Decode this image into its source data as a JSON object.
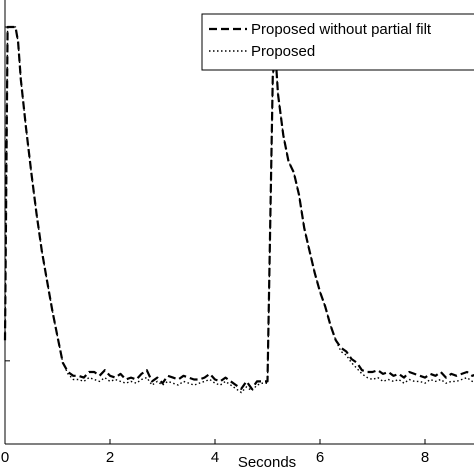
{
  "chart_data": {
    "type": "line",
    "title": "",
    "xlabel": "Seconds",
    "ylabel": "",
    "xlim": [
      0,
      9.1
    ],
    "ylim": [
      0,
      1
    ],
    "x_ticks": [
      "0",
      "2",
      "4",
      "6",
      "8"
    ],
    "x_tick_values": [
      0,
      2,
      4,
      6,
      8
    ],
    "y_tick_values": [
      0.105,
      1.0
    ],
    "grid": false,
    "legend_position": "top-right",
    "series": [
      {
        "name": "Proposed without partial filt",
        "style": "dashed",
        "color": "#000000",
        "x": [
          0,
          0.05,
          0.1,
          0.2,
          0.25,
          0.3,
          0.4,
          0.5,
          0.6,
          0.7,
          0.8,
          0.9,
          1.0,
          1.1,
          1.2,
          1.3,
          1.4,
          1.5,
          1.6,
          1.7,
          1.8,
          1.9,
          2.0,
          2.1,
          2.2,
          2.3,
          2.4,
          2.5,
          2.6,
          2.7,
          2.8,
          2.9,
          3.0,
          3.1,
          3.2,
          3.3,
          3.4,
          3.5,
          3.6,
          3.7,
          3.8,
          3.9,
          4.0,
          4.1,
          4.2,
          4.3,
          4.4,
          4.5,
          4.6,
          4.7,
          4.8,
          4.9,
          5.0,
          5.1,
          5.15,
          5.2,
          5.3,
          5.4,
          5.5,
          5.6,
          5.7,
          5.8,
          5.9,
          6.0,
          6.1,
          6.2,
          6.3,
          6.4,
          6.5,
          6.6,
          6.7,
          6.8,
          6.9,
          7.0,
          7.1,
          7.2,
          7.3,
          7.4,
          7.5,
          7.6,
          7.7,
          7.8,
          7.9,
          8.0,
          8.1,
          8.2,
          8.3,
          8.4,
          8.5,
          8.6,
          8.7,
          8.8,
          8.9,
          9.0
        ],
        "y": [
          0.16,
          1.0,
          1.0,
          1.0,
          0.96,
          0.86,
          0.73,
          0.61,
          0.5,
          0.4,
          0.32,
          0.24,
          0.17,
          0.1,
          0.075,
          0.065,
          0.065,
          0.06,
          0.075,
          0.075,
          0.065,
          0.08,
          0.065,
          0.06,
          0.07,
          0.055,
          0.06,
          0.055,
          0.07,
          0.08,
          0.05,
          0.06,
          0.045,
          0.065,
          0.06,
          0.055,
          0.065,
          0.06,
          0.055,
          0.055,
          0.06,
          0.07,
          0.055,
          0.05,
          0.06,
          0.05,
          0.04,
          0.03,
          0.05,
          0.03,
          0.05,
          0.05,
          0.05,
          0.87,
          0.93,
          0.82,
          0.71,
          0.64,
          0.61,
          0.55,
          0.46,
          0.4,
          0.34,
          0.29,
          0.25,
          0.2,
          0.16,
          0.14,
          0.13,
          0.11,
          0.1,
          0.08,
          0.075,
          0.075,
          0.08,
          0.07,
          0.075,
          0.065,
          0.07,
          0.06,
          0.075,
          0.07,
          0.065,
          0.06,
          0.07,
          0.065,
          0.075,
          0.06,
          0.07,
          0.065,
          0.07,
          0.075,
          0.065,
          0.07
        ]
      },
      {
        "name": "Proposed",
        "style": "dotted",
        "color": "#000000",
        "x": [
          0,
          0.05,
          0.1,
          0.2,
          0.25,
          0.3,
          0.4,
          0.5,
          0.6,
          0.7,
          0.8,
          0.9,
          1.0,
          1.1,
          1.2,
          1.3,
          1.4,
          1.5,
          1.6,
          1.7,
          1.8,
          1.9,
          2.0,
          2.1,
          2.2,
          2.3,
          2.4,
          2.5,
          2.6,
          2.7,
          2.8,
          2.9,
          3.0,
          3.1,
          3.2,
          3.3,
          3.4,
          3.5,
          3.6,
          3.7,
          3.8,
          3.9,
          4.0,
          4.1,
          4.2,
          4.3,
          4.4,
          4.5,
          4.6,
          4.7,
          4.8,
          4.9,
          5.0,
          5.1,
          5.15,
          5.2,
          5.3,
          5.4,
          5.5,
          5.6,
          5.7,
          5.8,
          5.9,
          6.0,
          6.1,
          6.2,
          6.3,
          6.4,
          6.5,
          6.6,
          6.7,
          6.8,
          6.9,
          7.0,
          7.1,
          7.2,
          7.3,
          7.4,
          7.5,
          7.6,
          7.7,
          7.8,
          7.9,
          8.0,
          8.1,
          8.2,
          8.3,
          8.4,
          8.5,
          8.6,
          8.7,
          8.8,
          8.9,
          9.0
        ],
        "y": [
          0.16,
          1.0,
          1.0,
          1.0,
          0.96,
          0.86,
          0.73,
          0.61,
          0.5,
          0.4,
          0.32,
          0.24,
          0.17,
          0.1,
          0.07,
          0.055,
          0.055,
          0.05,
          0.06,
          0.055,
          0.05,
          0.06,
          0.05,
          0.055,
          0.05,
          0.045,
          0.05,
          0.045,
          0.055,
          0.06,
          0.04,
          0.05,
          0.04,
          0.05,
          0.045,
          0.04,
          0.05,
          0.045,
          0.04,
          0.045,
          0.05,
          0.055,
          0.045,
          0.04,
          0.05,
          0.04,
          0.03,
          0.02,
          0.035,
          0.025,
          0.04,
          0.045,
          0.045,
          0.87,
          0.93,
          0.82,
          0.71,
          0.64,
          0.61,
          0.55,
          0.46,
          0.4,
          0.34,
          0.29,
          0.25,
          0.2,
          0.16,
          0.13,
          0.12,
          0.1,
          0.085,
          0.07,
          0.06,
          0.055,
          0.06,
          0.05,
          0.055,
          0.05,
          0.055,
          0.045,
          0.055,
          0.05,
          0.05,
          0.045,
          0.055,
          0.05,
          0.055,
          0.045,
          0.05,
          0.05,
          0.055,
          0.06,
          0.05,
          0.055
        ]
      }
    ]
  }
}
